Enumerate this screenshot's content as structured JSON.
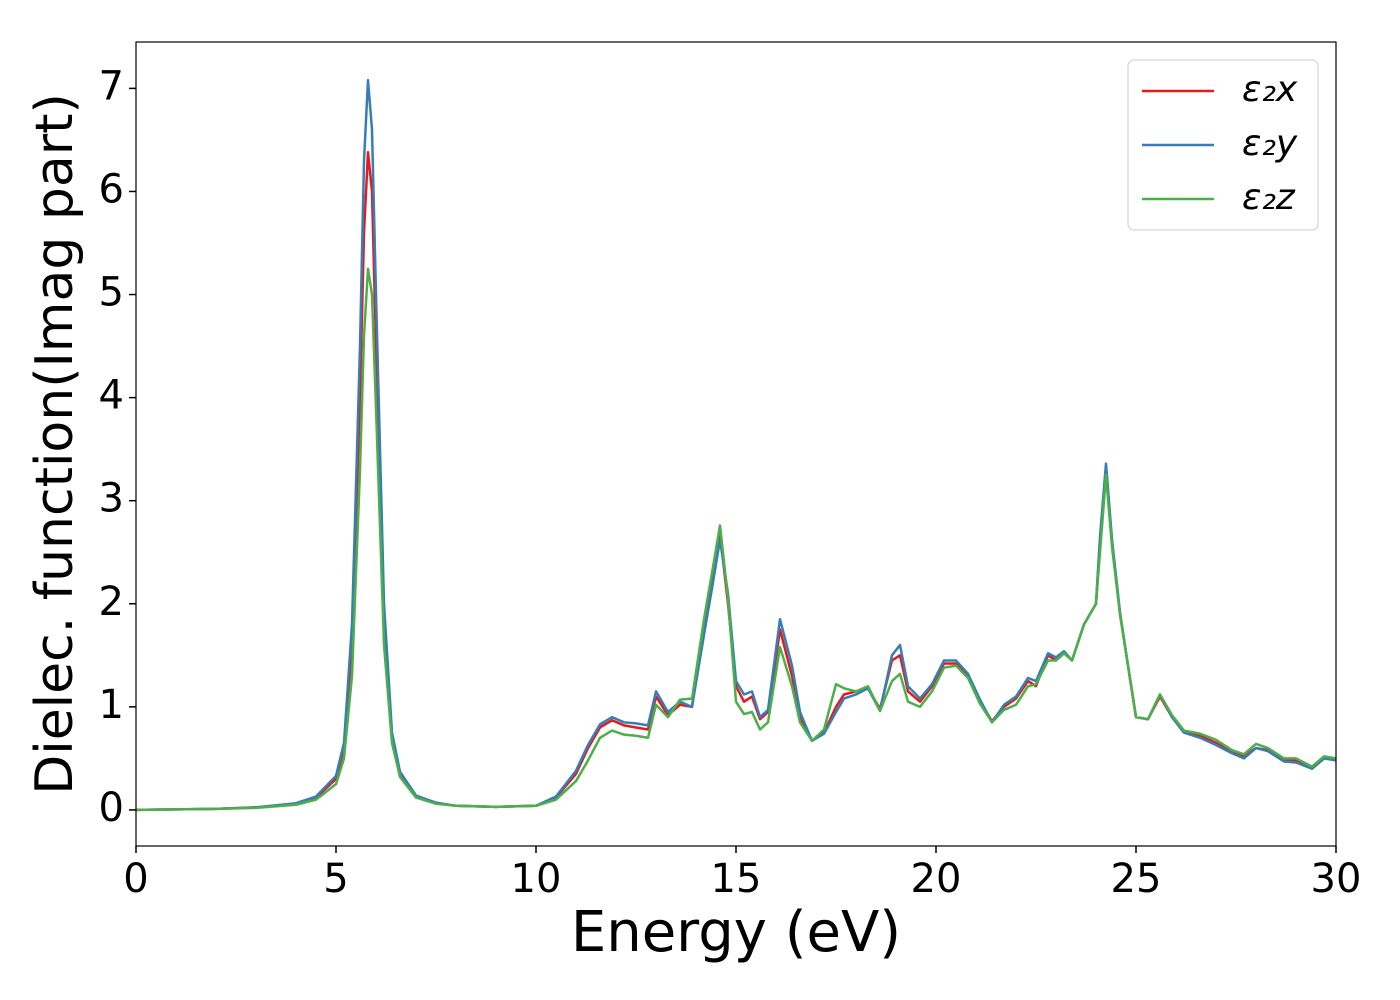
{
  "chart_data": {
    "type": "line",
    "xlabel": "Energy (eV)",
    "ylabel": "Dielec. function(Imag part)",
    "x": [
      0,
      1,
      2,
      3,
      4,
      4.5,
      5,
      5.2,
      5.4,
      5.6,
      5.7,
      5.8,
      5.9,
      6.0,
      6.2,
      6.4,
      6.6,
      7,
      7.5,
      8,
      9,
      10,
      10.5,
      11,
      11.3,
      11.6,
      11.9,
      12.2,
      12.5,
      12.8,
      13.0,
      13.3,
      13.6,
      13.9,
      14.2,
      14.4,
      14.6,
      14.8,
      15.0,
      15.2,
      15.4,
      15.6,
      15.8,
      16.1,
      16.4,
      16.6,
      16.9,
      17.2,
      17.5,
      17.7,
      18.0,
      18.3,
      18.6,
      18.9,
      19.1,
      19.3,
      19.6,
      19.9,
      20.2,
      20.5,
      20.8,
      21.1,
      21.4,
      21.7,
      22.0,
      22.3,
      22.5,
      22.8,
      23.0,
      23.2,
      23.4,
      23.7,
      24.0,
      24.1,
      24.25,
      24.4,
      24.6,
      24.8,
      25.0,
      25.3,
      25.6,
      25.9,
      26.2,
      26.6,
      27.0,
      27.4,
      27.7,
      28.0,
      28.3,
      28.7,
      29.0,
      29.4,
      29.7,
      30
    ],
    "series": [
      {
        "name": "ε₂x",
        "color": "#e41a1c",
        "values": [
          0,
          0.005,
          0.01,
          0.025,
          0.06,
          0.12,
          0.3,
          0.6,
          1.6,
          4.0,
          5.6,
          6.38,
          6.0,
          4.5,
          1.8,
          0.7,
          0.35,
          0.13,
          0.07,
          0.04,
          0.03,
          0.04,
          0.12,
          0.35,
          0.6,
          0.8,
          0.87,
          0.82,
          0.8,
          0.78,
          1.1,
          0.92,
          1.02,
          1.0,
          1.8,
          2.2,
          2.68,
          2.0,
          1.2,
          1.05,
          1.1,
          0.88,
          0.95,
          1.75,
          1.3,
          0.9,
          0.67,
          0.75,
          1.0,
          1.12,
          1.15,
          1.18,
          0.98,
          1.45,
          1.5,
          1.15,
          1.05,
          1.2,
          1.42,
          1.42,
          1.3,
          1.05,
          0.86,
          1.0,
          1.08,
          1.25,
          1.2,
          1.5,
          1.45,
          1.52,
          1.45,
          1.8,
          2.0,
          2.6,
          3.33,
          2.6,
          1.9,
          1.4,
          0.9,
          0.88,
          1.1,
          0.9,
          0.75,
          0.72,
          0.65,
          0.57,
          0.52,
          0.6,
          0.58,
          0.48,
          0.48,
          0.4,
          0.5,
          0.5
        ]
      },
      {
        "name": "ε₂y",
        "color": "#377eb8",
        "values": [
          0,
          0.005,
          0.01,
          0.025,
          0.065,
          0.13,
          0.33,
          0.65,
          1.8,
          4.5,
          6.3,
          7.08,
          6.6,
          5.0,
          2.0,
          0.75,
          0.37,
          0.14,
          0.07,
          0.04,
          0.03,
          0.04,
          0.13,
          0.38,
          0.63,
          0.83,
          0.9,
          0.85,
          0.84,
          0.82,
          1.15,
          0.95,
          1.05,
          1.0,
          1.7,
          2.15,
          2.62,
          2.1,
          1.25,
          1.12,
          1.15,
          0.9,
          0.97,
          1.85,
          1.4,
          0.95,
          0.67,
          0.74,
          0.95,
          1.08,
          1.12,
          1.18,
          0.96,
          1.5,
          1.6,
          1.2,
          1.08,
          1.22,
          1.45,
          1.45,
          1.32,
          1.07,
          0.85,
          1.02,
          1.1,
          1.28,
          1.25,
          1.52,
          1.48,
          1.54,
          1.45,
          1.8,
          2.0,
          2.65,
          3.36,
          2.62,
          1.92,
          1.4,
          0.9,
          0.88,
          1.12,
          0.9,
          0.75,
          0.7,
          0.63,
          0.55,
          0.5,
          0.6,
          0.57,
          0.47,
          0.46,
          0.4,
          0.5,
          0.48
        ]
      },
      {
        "name": "ε₂z",
        "color": "#4daf4a",
        "values": [
          0,
          0.005,
          0.01,
          0.02,
          0.05,
          0.1,
          0.25,
          0.5,
          1.3,
          3.3,
          4.6,
          5.25,
          5.0,
          3.9,
          1.6,
          0.65,
          0.32,
          0.12,
          0.06,
          0.04,
          0.03,
          0.04,
          0.1,
          0.28,
          0.48,
          0.7,
          0.77,
          0.73,
          0.72,
          0.7,
          1.02,
          0.9,
          1.07,
          1.08,
          1.85,
          2.3,
          2.76,
          2.05,
          1.05,
          0.93,
          0.95,
          0.78,
          0.85,
          1.58,
          1.2,
          0.85,
          0.67,
          0.78,
          1.22,
          1.18,
          1.15,
          1.2,
          0.96,
          1.25,
          1.32,
          1.05,
          1.0,
          1.15,
          1.38,
          1.4,
          1.28,
          1.03,
          0.85,
          0.97,
          1.02,
          1.2,
          1.22,
          1.45,
          1.45,
          1.52,
          1.45,
          1.8,
          2.0,
          2.5,
          3.25,
          2.55,
          1.9,
          1.4,
          0.9,
          0.88,
          1.12,
          0.92,
          0.77,
          0.74,
          0.68,
          0.58,
          0.54,
          0.64,
          0.6,
          0.5,
          0.5,
          0.42,
          0.52,
          0.5
        ]
      }
    ],
    "xlim": [
      0,
      30
    ],
    "xticks": [
      0,
      5,
      10,
      15,
      20,
      25,
      30
    ],
    "ylim": [
      -0.35,
      7.45
    ],
    "yticks": [
      0,
      1,
      2,
      3,
      4,
      5,
      6,
      7
    ],
    "grid": false,
    "legend": "upper right"
  }
}
